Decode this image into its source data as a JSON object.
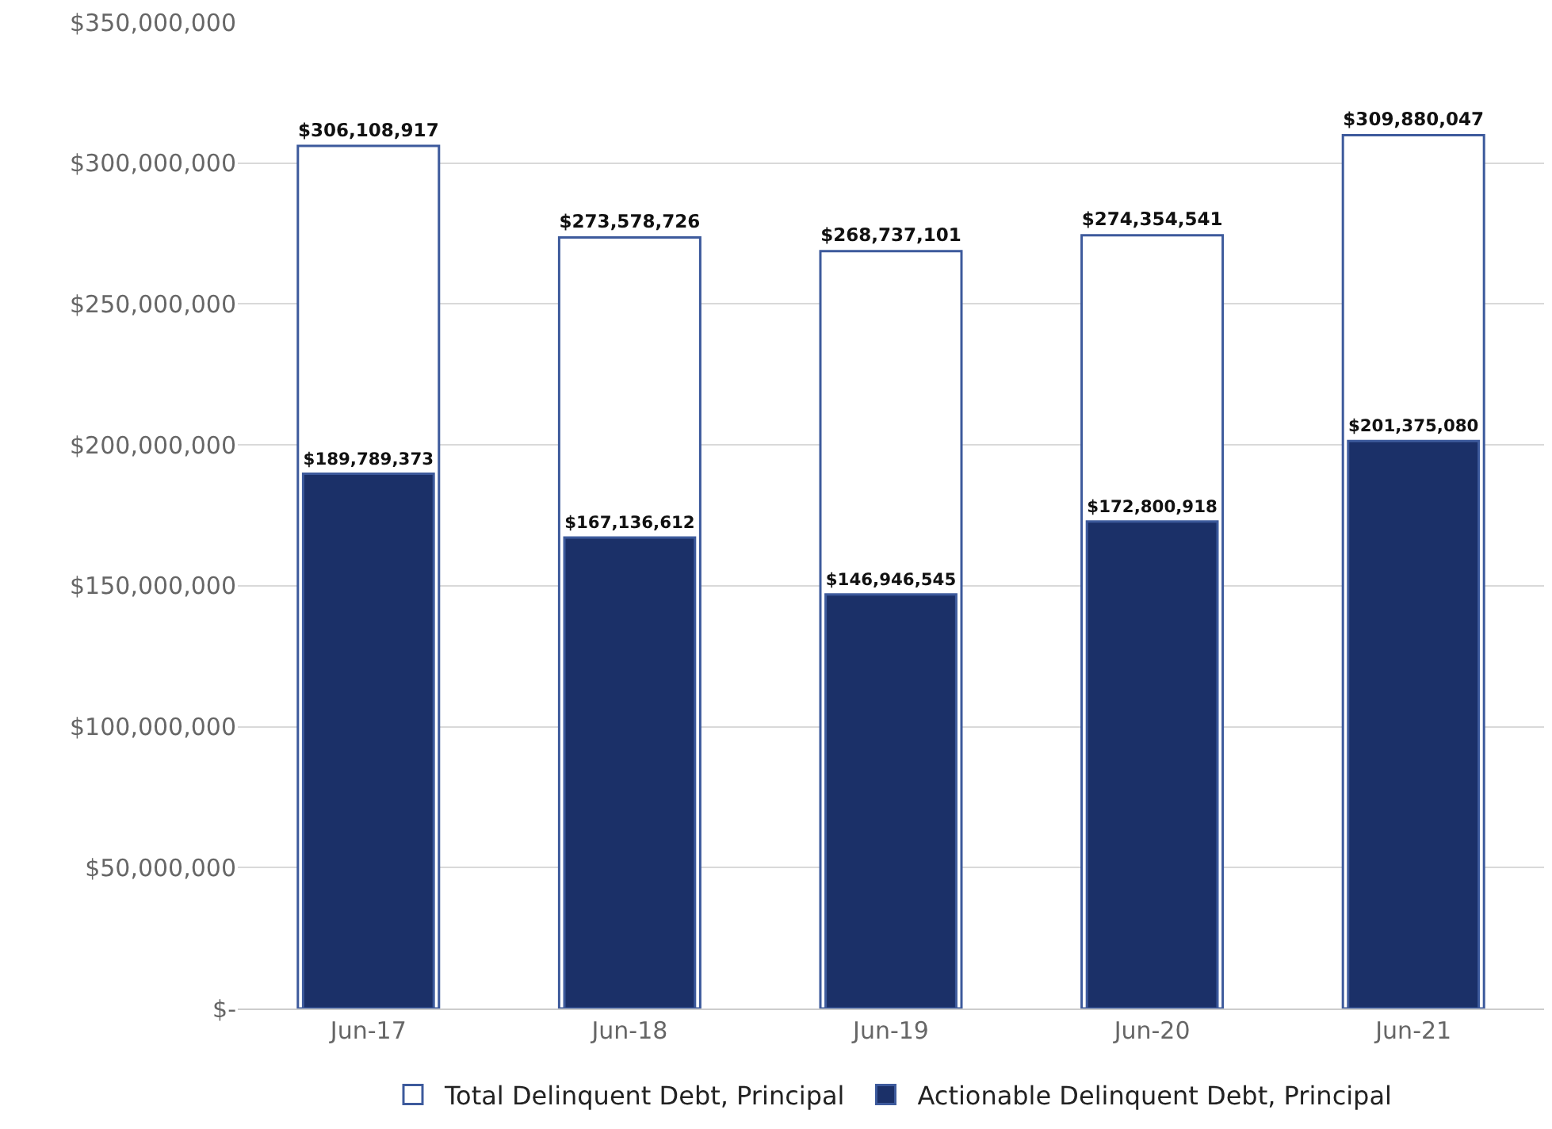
{
  "chart_data": {
    "type": "bar",
    "categories": [
      "Jun-17",
      "Jun-18",
      "Jun-19",
      "Jun-20",
      "Jun-21"
    ],
    "series": [
      {
        "name": "Total Delinquent Debt, Principal",
        "color": "#ffffff",
        "values": [
          306108917,
          273578726,
          268737101,
          274354541,
          309880047
        ],
        "value_labels": [
          "$306,108,917",
          "$273,578,726",
          "$268,737,101",
          "$274,354,541",
          "$309,880,047"
        ]
      },
      {
        "name": "Actionable Delinquent Debt, Principal",
        "color": "#1b3068",
        "values": [
          189789373,
          167136612,
          146946545,
          172800918,
          201375080
        ],
        "value_labels": [
          "$189,789,373",
          "$167,136,612",
          "$146,946,545",
          "$172,800,918",
          "$201,375,080"
        ]
      }
    ],
    "ylim": [
      0,
      350000000
    ],
    "yticks": [
      {
        "value": 0,
        "label": "$-"
      },
      {
        "value": 50000000,
        "label": "$50,000,000"
      },
      {
        "value": 100000000,
        "label": "$100,000,000"
      },
      {
        "value": 150000000,
        "label": "$150,000,000"
      },
      {
        "value": 200000000,
        "label": "$200,000,000"
      },
      {
        "value": 250000000,
        "label": "$250,000,000"
      },
      {
        "value": 300000000,
        "label": "$300,000,000"
      },
      {
        "value": 350000000,
        "label": "$350,000,000"
      }
    ],
    "grid": "y",
    "legend": "bottom"
  }
}
